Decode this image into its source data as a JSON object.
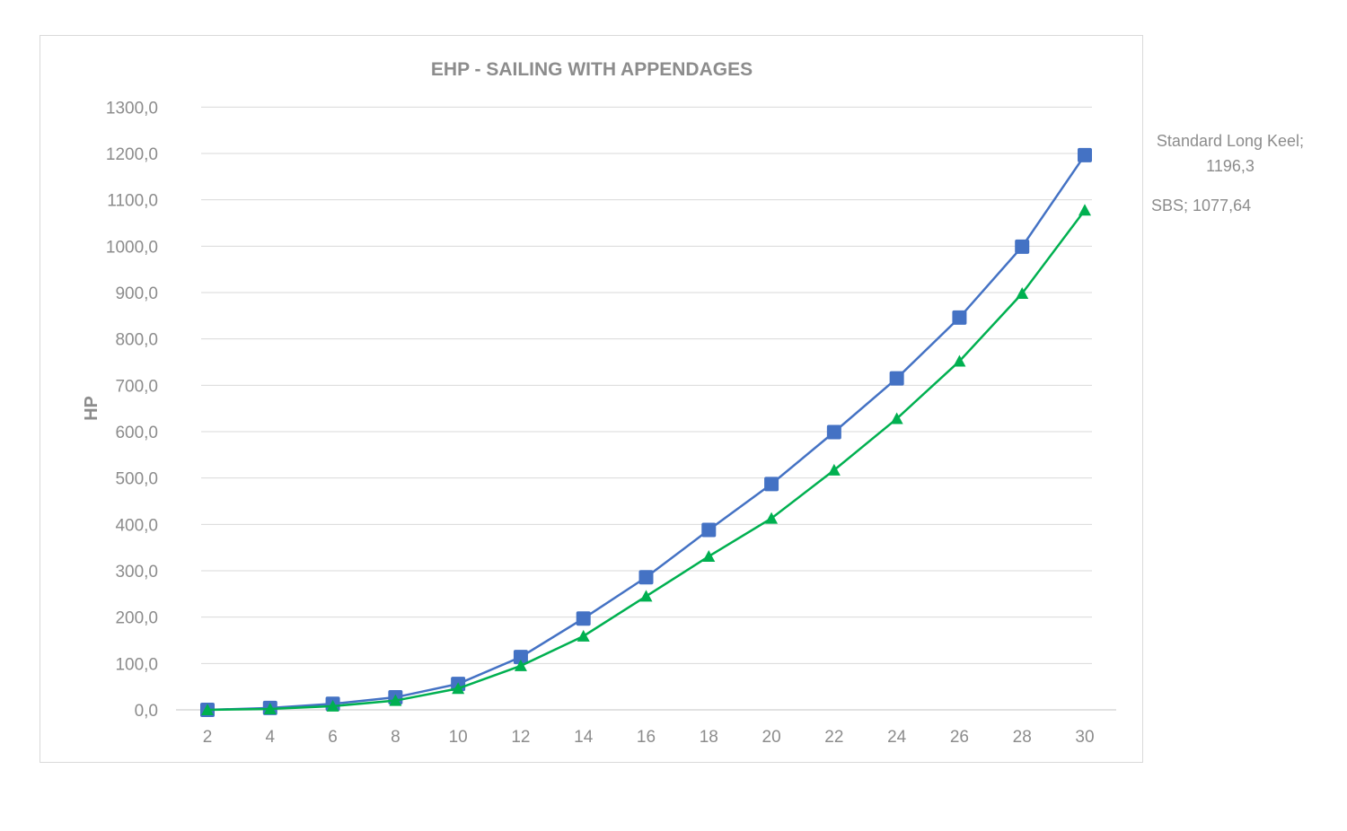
{
  "chart_data": {
    "type": "line",
    "title": "EHP - SAILING WITH APPENDAGES",
    "xlabel": "",
    "ylabel": "HP",
    "x": [
      2,
      4,
      6,
      8,
      10,
      12,
      14,
      16,
      18,
      20,
      22,
      24,
      26,
      28,
      30
    ],
    "x_tick_labels": [
      "2",
      "4",
      "6",
      "8",
      "10",
      "12",
      "14",
      "16",
      "18",
      "20",
      "22",
      "24",
      "26",
      "28",
      "30"
    ],
    "ylim": [
      0,
      1300
    ],
    "y_tick_labels": [
      "0,0",
      "100,0",
      "200,0",
      "300,0",
      "400,0",
      "500,0",
      "600,0",
      "700,0",
      "800,0",
      "900,0",
      "1000,0",
      "1100,0",
      "1200,0",
      "1300,0"
    ],
    "grid": true,
    "series": [
      {
        "name": "Standard Long Keel",
        "color": "#4472c4",
        "marker": "square",
        "values": [
          0,
          4,
          13,
          27,
          56,
          114,
          197,
          286,
          388,
          487,
          599,
          715,
          846,
          999,
          1196.3
        ],
        "end_label_lines": [
          "Standard Long Keel;",
          "1196,3"
        ]
      },
      {
        "name": "SBS",
        "color": "#00b050",
        "marker": "triangle",
        "values": [
          0,
          2,
          8,
          20,
          46,
          95,
          159,
          245,
          331,
          413,
          517,
          628,
          752,
          898,
          1077.64
        ],
        "end_label_lines": [
          "SBS; 1077,64"
        ]
      }
    ]
  }
}
